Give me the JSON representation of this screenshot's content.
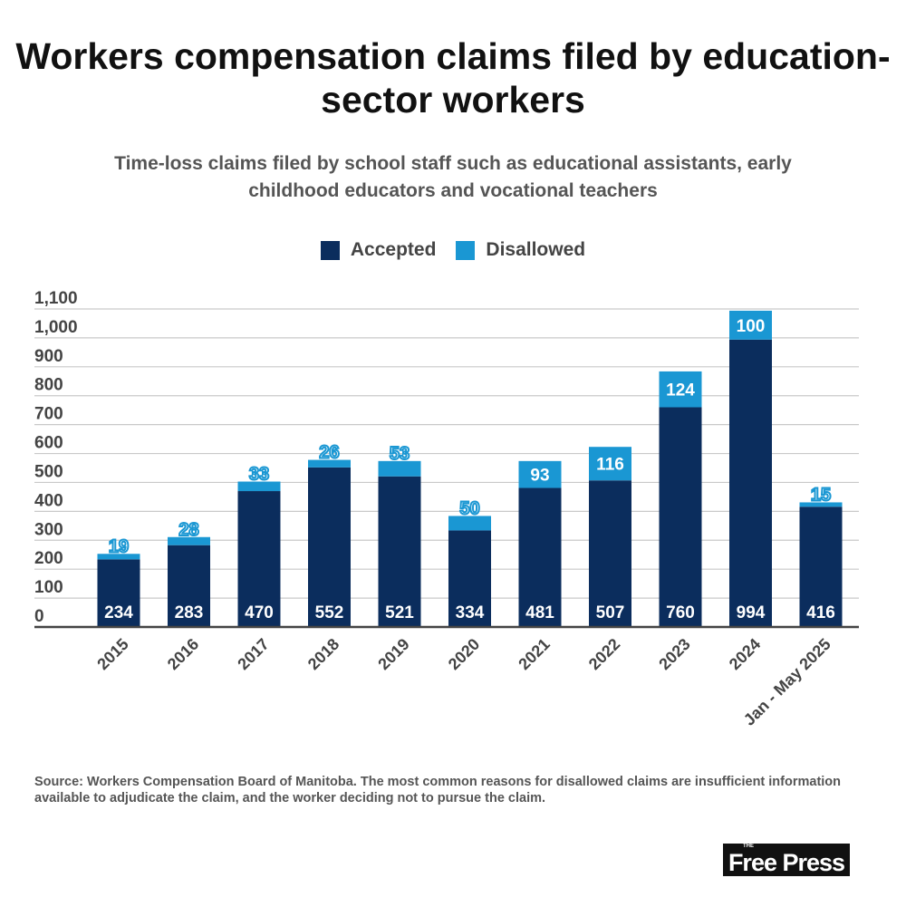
{
  "colors": {
    "accepted": "#0b2d5d",
    "disallowed": "#1a97d3",
    "grid": "#c9c9c9",
    "axis": "#444444"
  },
  "chart_data": {
    "type": "bar",
    "stacked": true,
    "title": "Workers compensation claims filed by education-sector workers",
    "subtitle": "Time-loss claims filed by school staff such as educational assistants, early childhood educators and vocational teachers",
    "categories": [
      "2015",
      "2016",
      "2017",
      "2018",
      "2019",
      "2020",
      "2021",
      "2022",
      "2023",
      "2024",
      "Jan - May 2025"
    ],
    "series": [
      {
        "name": "Accepted",
        "values": [
          234,
          283,
          470,
          552,
          521,
          334,
          481,
          507,
          760,
          994,
          416
        ]
      },
      {
        "name": "Disallowed",
        "values": [
          19,
          28,
          33,
          26,
          53,
          50,
          93,
          116,
          124,
          100,
          15
        ]
      }
    ],
    "yticks": [
      0,
      100,
      200,
      300,
      400,
      500,
      600,
      700,
      800,
      900,
      1000,
      1100
    ],
    "ytick_labels": [
      "0",
      "100",
      "200",
      "300",
      "400",
      "500",
      "600",
      "700",
      "800",
      "900",
      "1,000",
      "1,100"
    ],
    "ylim": [
      0,
      1100
    ],
    "legend": "top-center",
    "grid": true,
    "xlabel": "",
    "ylabel": ""
  },
  "source": "Source: Workers Compensation Board of Manitoba. The most common reasons for disallowed claims are insufficient information available to adjudicate the claim, and the worker deciding not to pursue the claim.",
  "logo": {
    "small": "THE",
    "text": "Free Press"
  }
}
